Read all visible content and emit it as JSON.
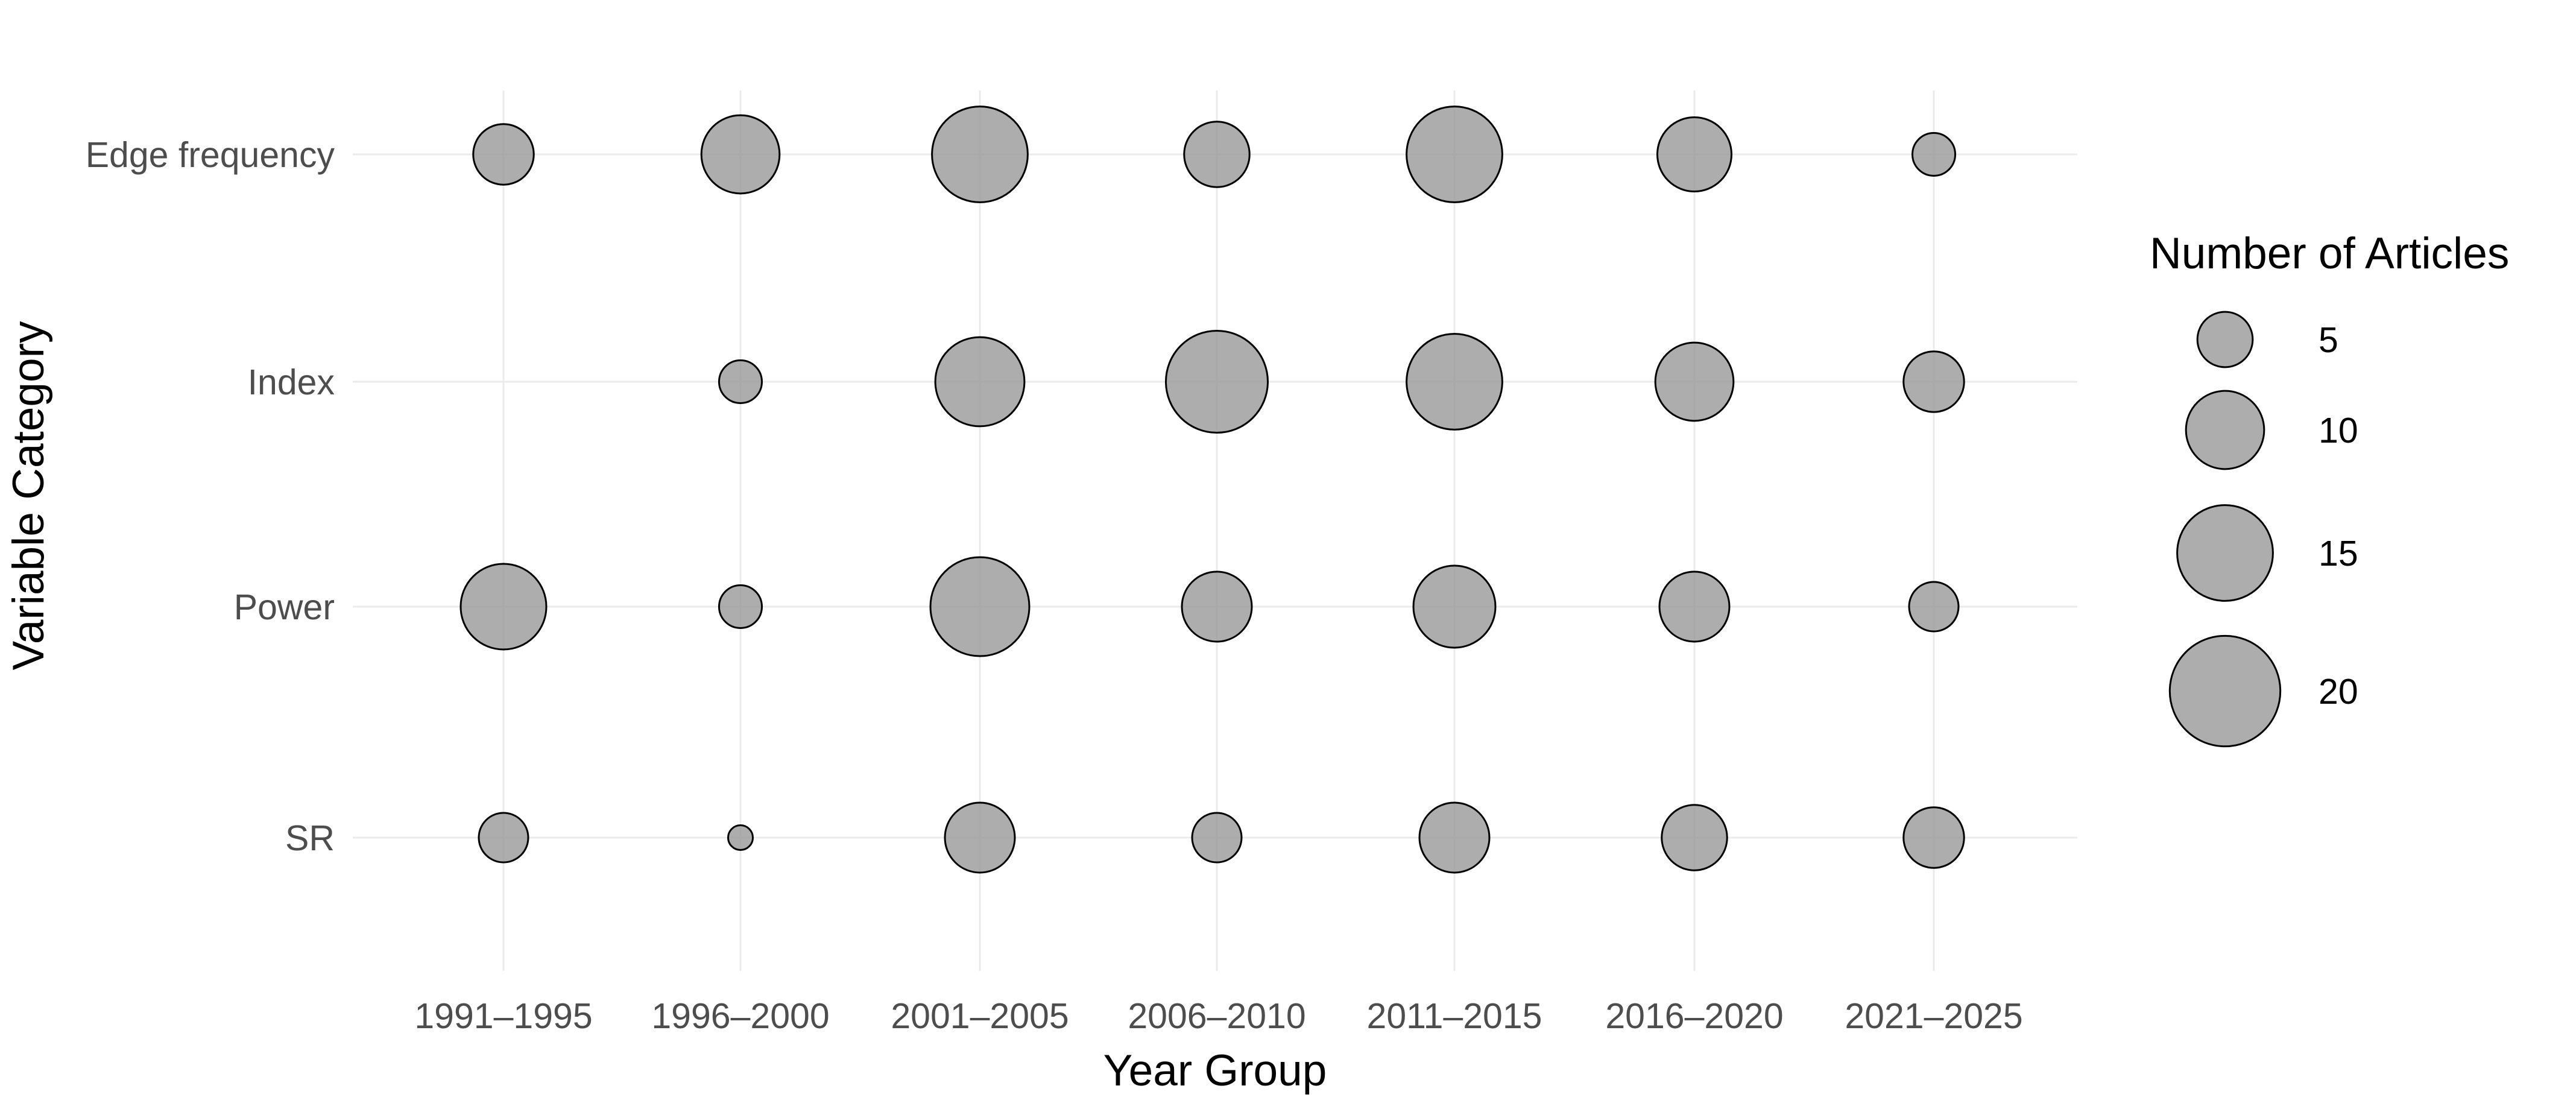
{
  "chart_data": {
    "type": "scatter",
    "subtype": "bubble",
    "xlabel": "Year Group",
    "ylabel": "Variable Category",
    "x_categories": [
      "1991–1995",
      "1996–2000",
      "2001–2005",
      "2006–2010",
      "2011–2015",
      "2016–2020",
      "2021–2025"
    ],
    "y_categories": [
      "Edge frequency",
      "Index",
      "Power",
      "SR"
    ],
    "size_variable": "Number of Articles",
    "points": [
      {
        "x": "1991–1995",
        "y": "Edge frequency",
        "size": 6
      },
      {
        "x": "1996–2000",
        "y": "Edge frequency",
        "size": 10
      },
      {
        "x": "2001–2005",
        "y": "Edge frequency",
        "size": 15
      },
      {
        "x": "2006–2010",
        "y": "Edge frequency",
        "size": 7
      },
      {
        "x": "2011–2015",
        "y": "Edge frequency",
        "size": 15
      },
      {
        "x": "2016–2020",
        "y": "Edge frequency",
        "size": 9
      },
      {
        "x": "2021–2025",
        "y": "Edge frequency",
        "size": 3
      },
      {
        "x": "1996–2000",
        "y": "Index",
        "size": 3
      },
      {
        "x": "2001–2005",
        "y": "Index",
        "size": 13
      },
      {
        "x": "2006–2010",
        "y": "Index",
        "size": 17
      },
      {
        "x": "2011–2015",
        "y": "Index",
        "size": 15
      },
      {
        "x": "2016–2020",
        "y": "Index",
        "size": 10
      },
      {
        "x": "2021–2025",
        "y": "Index",
        "size": 6
      },
      {
        "x": "1991–1995",
        "y": "Power",
        "size": 12
      },
      {
        "x": "1996–2000",
        "y": "Power",
        "size": 3
      },
      {
        "x": "2001–2005",
        "y": "Power",
        "size": 16
      },
      {
        "x": "2006–2010",
        "y": "Power",
        "size": 8
      },
      {
        "x": "2011–2015",
        "y": "Power",
        "size": 11
      },
      {
        "x": "2016–2020",
        "y": "Power",
        "size": 8
      },
      {
        "x": "2021–2025",
        "y": "Power",
        "size": 4
      },
      {
        "x": "1991–1995",
        "y": "SR",
        "size": 4
      },
      {
        "x": "1996–2000",
        "y": "SR",
        "size": 1
      },
      {
        "x": "2001–2005",
        "y": "SR",
        "size": 8
      },
      {
        "x": "2006–2010",
        "y": "SR",
        "size": 4
      },
      {
        "x": "2011–2015",
        "y": "SR",
        "size": 8
      },
      {
        "x": "2016–2020",
        "y": "SR",
        "size": 7
      },
      {
        "x": "2021–2025",
        "y": "SR",
        "size": 6
      }
    ],
    "legend": {
      "title": "Number of Articles",
      "placement": "right",
      "entries": [
        {
          "label": "5",
          "value": 5
        },
        {
          "label": "10",
          "value": 10
        },
        {
          "label": "15",
          "value": 15
        },
        {
          "label": "20",
          "value": 20
        }
      ]
    },
    "grid": true,
    "colors": {
      "bubble_fill": "#999999",
      "bubble_stroke": "#000000",
      "grid": "#ebebeb",
      "tick_text": "#4d4d4d",
      "title_text": "#000000"
    }
  }
}
